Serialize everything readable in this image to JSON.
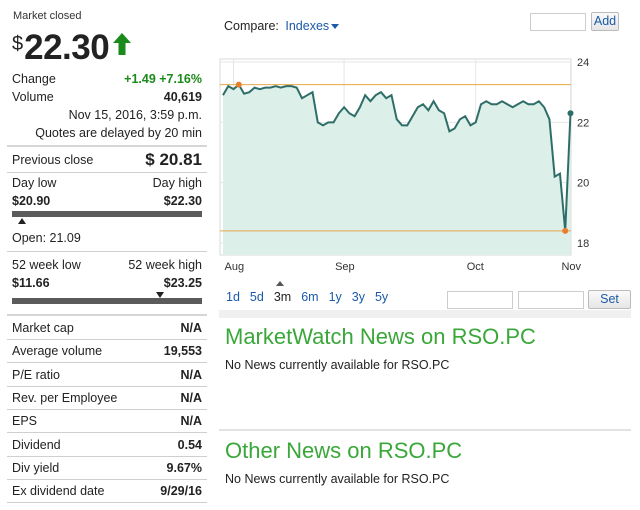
{
  "quote": {
    "status": "Market closed",
    "currency_symbol": "$",
    "price": "22.30",
    "change_label": "Change",
    "change_value": "+1.49 +7.16%",
    "volume_label": "Volume",
    "volume_value": "40,619",
    "datetime": "Nov 15, 2016, 3:59 p.m.",
    "delay_note": "Quotes are delayed by 20 min",
    "prev_close_label": "Previous close",
    "prev_close_value": "$ 20.81",
    "day_low_label": "Day low",
    "day_high_label": "Day high",
    "day_low_value": "$20.90",
    "day_high_value": "$22.30",
    "open_label": "Open: 21.09",
    "wk52_low_label": "52 week low",
    "wk52_high_label": "52 week high",
    "wk52_low_value": "$11.66",
    "wk52_high_value": "$23.25",
    "day_range_position": 0.05,
    "wk52_range_position": 0.78
  },
  "stats": [
    {
      "label": "Market cap",
      "value": "N/A"
    },
    {
      "label": "Average volume",
      "value": "19,553"
    },
    {
      "label": "P/E ratio",
      "value": "N/A"
    },
    {
      "label": "Rev. per Employee",
      "value": "N/A"
    },
    {
      "label": "EPS",
      "value": "N/A"
    },
    {
      "label": "Dividend",
      "value": "0.54"
    },
    {
      "label": "Div yield",
      "value": "9.67%"
    },
    {
      "label": "Ex dividend date",
      "value": "9/29/16"
    }
  ],
  "compare": {
    "label": "Compare:",
    "dropdown": "Indexes",
    "add_button": "Add"
  },
  "periods": [
    "1d",
    "5d",
    "3m",
    "6m",
    "1y",
    "3y",
    "5y"
  ],
  "selected_period": "3m",
  "set_button": "Set",
  "news": {
    "mw_title": "MarketWatch News on RSO.PC",
    "mw_message": "No News currently available for RSO.PC",
    "other_title": "Other News on RSO.PC",
    "other_message": "No News currently available for RSO.PC"
  },
  "colors": {
    "positive": "#1a8a1a",
    "link": "#1a5aa8",
    "news_title": "#3aa73a",
    "chart_line": "#2f6e68",
    "chart_fill": "#dcefe9",
    "ref_line": "#e6a64a",
    "marker": "#e87e2c"
  },
  "chart_data": {
    "type": "area",
    "x_ticks": [
      "Aug",
      "Sep",
      "Oct",
      "Nov"
    ],
    "y_ticks": [
      "24",
      "22",
      "20",
      "18"
    ],
    "ylim": [
      17.6,
      24.1
    ],
    "grid": true,
    "high_line": 23.25,
    "low_line": 18.4,
    "series": [
      {
        "values": [
          22.9,
          23.2,
          23.1,
          23.25,
          22.95,
          23.0,
          23.15,
          23.1,
          23.15,
          23.15,
          23.2,
          23.15,
          23.2,
          23.2,
          23.15,
          22.8,
          22.9,
          23.0,
          22.0,
          21.9,
          22.0,
          22.0,
          22.3,
          22.5,
          22.3,
          22.2,
          22.5,
          22.9,
          22.7,
          22.9,
          23.0,
          22.8,
          22.9,
          22.1,
          21.9,
          21.9,
          22.2,
          22.5,
          22.6,
          22.4,
          22.7,
          22.4,
          22.3,
          21.7,
          21.8,
          22.1,
          22.2,
          21.9,
          22.0,
          22.6,
          22.7,
          22.6,
          22.6,
          22.7,
          22.6,
          22.5,
          22.6,
          22.7,
          22.6,
          22.6,
          22.7,
          22.5,
          22.1,
          20.2,
          20.3,
          18.4,
          22.3
        ]
      }
    ],
    "markers": [
      {
        "index": 3,
        "value": 23.25
      },
      {
        "index": 65,
        "value": 18.4
      },
      {
        "index": 66,
        "value": 22.3
      }
    ]
  }
}
